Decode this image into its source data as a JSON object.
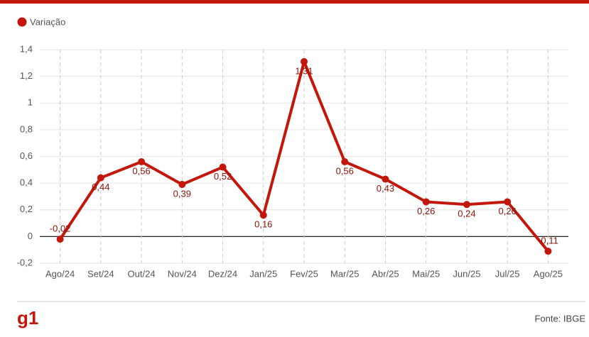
{
  "chart_data": {
    "type": "line",
    "categories": [
      "Ago/24",
      "Set/24",
      "Out/24",
      "Nov/24",
      "Dez/24",
      "Jan/25",
      "Fev/25",
      "Mar/25",
      "Abr/25",
      "Mai/25",
      "Jun/25",
      "Jul/25",
      "Ago/25"
    ],
    "series": [
      {
        "name": "Variação",
        "color": "#c4170c",
        "values": [
          -0.02,
          0.44,
          0.56,
          0.39,
          0.52,
          0.16,
          1.31,
          0.56,
          0.43,
          0.26,
          0.24,
          0.26,
          -0.11
        ],
        "value_labels": [
          "-0,02",
          "0,44",
          "0,56",
          "0,39",
          "0,52",
          "0,16",
          "1,31",
          "0,56",
          "0,43",
          "0,26",
          "0,24",
          "0,26",
          "-0,11"
        ]
      }
    ],
    "ylim": [
      -0.2,
      1.4
    ],
    "yticks": [
      {
        "value": -0.2,
        "label": "-0,2"
      },
      0,
      {
        "value": 0.2,
        "label": "0,2"
      },
      {
        "value": 0.4,
        "label": "0,4"
      },
      {
        "value": 0.6,
        "label": "0,6"
      },
      {
        "value": 0.8,
        "label": "0,8"
      },
      1,
      {
        "value": 1.2,
        "label": "1,2"
      },
      {
        "value": 1.4,
        "label": "1,4"
      }
    ],
    "grid": true,
    "legend": "top-left"
  },
  "footer": {
    "logo": "g1",
    "source": "Fonte: IBGE"
  }
}
